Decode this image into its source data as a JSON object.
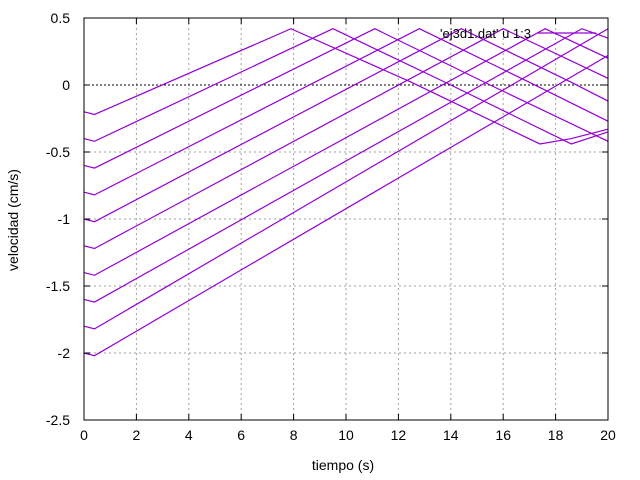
{
  "chart_data": {
    "type": "line",
    "title": "",
    "xlabel": "tiempo (s)",
    "ylabel": "velocidad (cm/s)",
    "xlim": [
      0,
      20
    ],
    "ylim": [
      -2.5,
      0.5
    ],
    "xticks": [
      0,
      2,
      4,
      6,
      8,
      10,
      12,
      14,
      16,
      18,
      20
    ],
    "yticks": [
      0.5,
      0,
      -0.5,
      -1,
      -1.5,
      -2,
      -2.5
    ],
    "ytick_labels": [
      "0.5",
      "0",
      "-0.5",
      "-1",
      "-1.5",
      "-2",
      "-2.5"
    ],
    "grid": true,
    "zero_line": true,
    "legend_position": "top-right",
    "series_color": "#9400d3",
    "series": [
      {
        "name": "'ej3d1.dat' u 1:3",
        "x": [
          0,
          0.4,
          7.9,
          12.5,
          17.4,
          18.6,
          20
        ],
        "y": [
          -0.2,
          -0.22,
          0.42,
          0.02,
          -0.44,
          -0.4,
          -0.33
        ]
      },
      {
        "x": [
          0,
          0.4,
          9.5,
          14.0,
          18.6,
          20
        ],
        "y": [
          -0.4,
          -0.42,
          0.42,
          0.0,
          -0.44,
          -0.35
        ]
      },
      {
        "x": [
          0,
          0.4,
          11.1,
          15.5,
          20
        ],
        "y": [
          -0.6,
          -0.62,
          0.42,
          0.0,
          -0.42
        ]
      },
      {
        "x": [
          0,
          0.4,
          12.8,
          17.0,
          20
        ],
        "y": [
          -0.8,
          -0.82,
          0.42,
          0.02,
          -0.27
        ]
      },
      {
        "x": [
          0,
          0.4,
          14.4,
          18.6,
          20
        ],
        "y": [
          -1.0,
          -1.02,
          0.42,
          0.02,
          -0.12
        ]
      },
      {
        "x": [
          0,
          0.4,
          16.0,
          20
        ],
        "y": [
          -1.2,
          -1.22,
          0.42,
          0.05
        ]
      },
      {
        "x": [
          0,
          0.4,
          17.6,
          20
        ],
        "y": [
          -1.4,
          -1.42,
          0.42,
          0.2
        ]
      },
      {
        "x": [
          0,
          0.4,
          19.0,
          20
        ],
        "y": [
          -1.6,
          -1.62,
          0.42,
          0.35
        ]
      },
      {
        "x": [
          0,
          0.4,
          20
        ],
        "y": [
          -1.8,
          -1.82,
          0.42
        ]
      },
      {
        "x": [
          0,
          0.4,
          20
        ],
        "y": [
          -2.0,
          -2.02,
          0.22
        ]
      }
    ]
  }
}
